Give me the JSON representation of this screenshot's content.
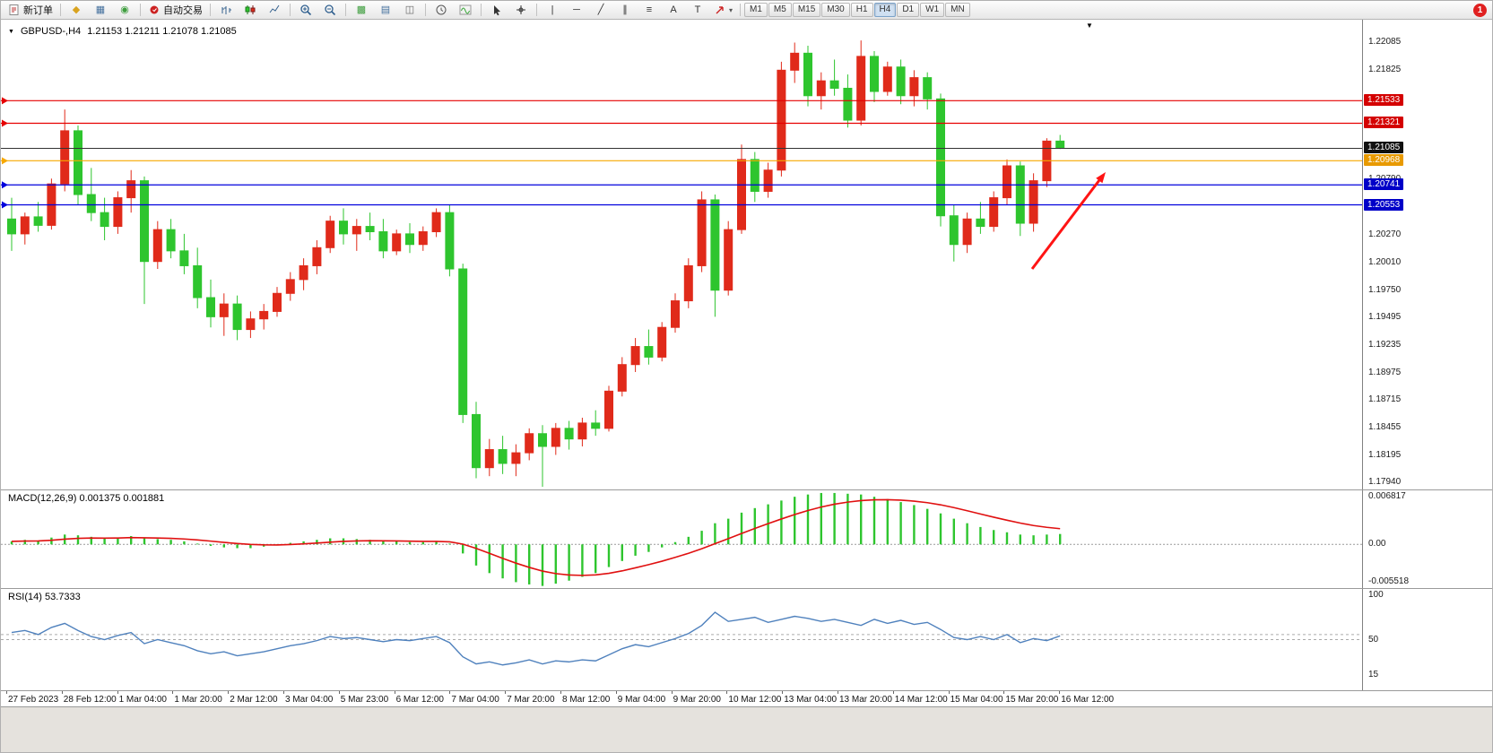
{
  "toolbar": {
    "groups": [
      [
        {
          "name": "new-order-button",
          "kind": "newdoc",
          "label": "新订单"
        }
      ],
      [
        {
          "name": "alerts-button",
          "glyph": "◆",
          "color": "#d9a31f"
        },
        {
          "name": "market-watch-button",
          "glyph": "▦",
          "color": "#44709d"
        },
        {
          "name": "navigator-button",
          "glyph": "◉",
          "color": "#3f9e3f"
        }
      ],
      [
        {
          "name": "autotrading-button",
          "kind": "auto",
          "label": "自动交易"
        }
      ],
      [
        {
          "name": "bar-chart-button",
          "kind": "bars",
          "color": "#35618e"
        },
        {
          "name": "candlestick-chart-button",
          "kind": "candle",
          "color": "#555555"
        },
        {
          "name": "line-chart-button",
          "kind": "linech",
          "color": "#35618e"
        }
      ],
      [
        {
          "name": "zoom-in-button",
          "kind": "zoomin"
        },
        {
          "name": "zoom-out-button",
          "kind": "zoomout"
        }
      ],
      [
        {
          "name": "tile-windows-button",
          "glyph": "▩",
          "color": "#3f9e3f"
        },
        {
          "name": "new-chart-button",
          "glyph": "▤",
          "color": "#44709d"
        },
        {
          "name": "cascade-windows-button",
          "glyph": "◫",
          "color": "#666666"
        }
      ],
      [
        {
          "name": "period-button",
          "kind": "clock"
        },
        {
          "name": "indicators-button",
          "kind": "wave"
        }
      ],
      [
        {
          "name": "cursor-button",
          "kind": "cursor"
        },
        {
          "name": "crosshair-button",
          "kind": "cross"
        }
      ],
      [
        {
          "name": "vertical-line-button",
          "glyph": "|",
          "color": "#333333"
        },
        {
          "name": "horizontal-line-button",
          "glyph": "─",
          "color": "#333333"
        },
        {
          "name": "trendline-button",
          "glyph": "╱",
          "color": "#333333"
        },
        {
          "name": "channel-button",
          "glyph": "∥",
          "color": "#333333"
        },
        {
          "name": "fibonacci-button",
          "glyph": "≡",
          "color": "#333333"
        },
        {
          "name": "text-button",
          "glyph": "A",
          "color": "#333333"
        },
        {
          "name": "label-button",
          "glyph": "T",
          "color": "#333333"
        },
        {
          "name": "shapes-button",
          "kind": "arrowshape",
          "caret": true
        }
      ]
    ],
    "timeframes": {
      "items": [
        "M1",
        "M5",
        "M15",
        "M30",
        "H1",
        "H4",
        "D1",
        "W1",
        "MN"
      ],
      "active": "H4"
    },
    "notification": {
      "count": "1"
    }
  },
  "chart": {
    "title_marker": "▼",
    "title_symbol": "GBPUSD-,H4",
    "title_ohlc": "1.21153 1.21211 1.21078 1.21085",
    "shift_marker": "▼",
    "scale": {
      "max": 1.22295,
      "min": 1.17875
    },
    "axis_labels": [
      {
        "text": "1.22085",
        "value": 1.22085
      },
      {
        "text": "1.21825",
        "value": 1.21825
      },
      {
        "text": "1.20790",
        "value": 1.2079
      },
      {
        "text": "1.20270",
        "value": 1.2027
      },
      {
        "text": "1.20010",
        "value": 1.2001
      },
      {
        "text": "1.19750",
        "value": 1.1975
      },
      {
        "text": "1.19495",
        "value": 1.19495
      },
      {
        "text": "1.19235",
        "value": 1.19235
      },
      {
        "text": "1.18975",
        "value": 1.18975
      },
      {
        "text": "1.18715",
        "value": 1.18715
      },
      {
        "text": "1.18455",
        "value": 1.18455
      },
      {
        "text": "1.18195",
        "value": 1.18195
      },
      {
        "text": "1.17940",
        "value": 1.1794
      }
    ],
    "levels": [
      {
        "label": "1.21533",
        "value": 1.21533,
        "color": "#e60000",
        "badge": "#d40000",
        "current": false
      },
      {
        "label": "1.21321",
        "value": 1.21321,
        "color": "#e60000",
        "badge": "#d40000",
        "current": false
      },
      {
        "label": "1.21085",
        "value": 1.21085,
        "color": "#333333",
        "badge": "#101010",
        "current": true
      },
      {
        "label": "1.20968",
        "value": 1.20968,
        "color": "#f7a800",
        "badge": "#e89a00",
        "current": false
      },
      {
        "label": "1.20741",
        "value": 1.20741,
        "color": "#0000dd",
        "badge": "#0000c8",
        "current": false
      },
      {
        "label": "1.20553",
        "value": 1.20553,
        "color": "#0000dd",
        "badge": "#0000c8",
        "current": false
      }
    ],
    "annotation": {
      "type": "arrow",
      "color": "#ff1414"
    }
  },
  "chart_data": {
    "type": "candlestick",
    "symbol": "GBPUSD-",
    "timeframe": "H4",
    "current": {
      "open": 1.21153,
      "high": 1.21211,
      "low": 1.21078,
      "close": 1.21085
    },
    "price_range": [
      1.17875,
      1.22295
    ],
    "up_color": "#e02a1a",
    "down_color": "#2ec52e",
    "candles": [
      [
        1.2042,
        1.2062,
        1.2012,
        1.2028
      ],
      [
        1.2028,
        1.2048,
        1.2018,
        1.2044
      ],
      [
        1.2044,
        1.2058,
        1.203,
        1.2036
      ],
      [
        1.2036,
        1.208,
        1.2032,
        1.2075
      ],
      [
        1.2075,
        1.2145,
        1.2068,
        1.2125
      ],
      [
        1.2125,
        1.213,
        1.2055,
        1.2065
      ],
      [
        1.2065,
        1.209,
        1.204,
        1.2048
      ],
      [
        1.2048,
        1.2062,
        1.2022,
        1.2035
      ],
      [
        1.2035,
        1.2068,
        1.2028,
        1.2062
      ],
      [
        1.2062,
        1.2088,
        1.2048,
        1.2078
      ],
      [
        1.2078,
        1.2082,
        1.1962,
        1.2002
      ],
      [
        1.2002,
        1.204,
        1.1995,
        1.2032
      ],
      [
        1.2032,
        1.2042,
        1.2005,
        1.2012
      ],
      [
        1.2012,
        1.2028,
        1.199,
        1.1998
      ],
      [
        1.1998,
        1.2015,
        1.1958,
        1.1968
      ],
      [
        1.1968,
        1.1985,
        1.194,
        1.195
      ],
      [
        1.195,
        1.1972,
        1.1932,
        1.1962
      ],
      [
        1.1962,
        1.197,
        1.1928,
        1.1938
      ],
      [
        1.1938,
        1.1955,
        1.193,
        1.1948
      ],
      [
        1.1948,
        1.1962,
        1.1938,
        1.1955
      ],
      [
        1.1955,
        1.1978,
        1.195,
        1.1972
      ],
      [
        1.1972,
        1.1992,
        1.1965,
        1.1985
      ],
      [
        1.1985,
        1.2005,
        1.1975,
        1.1998
      ],
      [
        1.1998,
        1.2022,
        1.199,
        1.2015
      ],
      [
        1.2015,
        1.2045,
        1.201,
        1.204
      ],
      [
        1.204,
        1.2052,
        1.2018,
        1.2028
      ],
      [
        1.2028,
        1.2042,
        1.2012,
        1.2035
      ],
      [
        1.2035,
        1.2048,
        1.2022,
        1.203
      ],
      [
        1.203,
        1.2042,
        1.2005,
        1.2012
      ],
      [
        1.2012,
        1.2032,
        1.2008,
        1.2028
      ],
      [
        1.2028,
        1.2038,
        1.201,
        1.2018
      ],
      [
        1.2018,
        1.2035,
        1.2012,
        1.203
      ],
      [
        1.203,
        1.2052,
        1.2025,
        1.2048
      ],
      [
        1.2048,
        1.2055,
        1.1988,
        1.1995
      ],
      [
        1.1995,
        1.2,
        1.185,
        1.1858
      ],
      [
        1.1858,
        1.187,
        1.1798,
        1.1808
      ],
      [
        1.1808,
        1.1835,
        1.18,
        1.1825
      ],
      [
        1.1825,
        1.1838,
        1.1802,
        1.1812
      ],
      [
        1.1812,
        1.183,
        1.18,
        1.1822
      ],
      [
        1.1822,
        1.1845,
        1.1815,
        1.184
      ],
      [
        1.184,
        1.1848,
        1.179,
        1.1828
      ],
      [
        1.1828,
        1.185,
        1.182,
        1.1845
      ],
      [
        1.1845,
        1.1852,
        1.1825,
        1.1835
      ],
      [
        1.1835,
        1.1855,
        1.1828,
        1.185
      ],
      [
        1.185,
        1.1862,
        1.1838,
        1.1845
      ],
      [
        1.1845,
        1.1885,
        1.1842,
        1.188
      ],
      [
        1.188,
        1.1912,
        1.1875,
        1.1905
      ],
      [
        1.1905,
        1.193,
        1.1898,
        1.1922
      ],
      [
        1.1922,
        1.1938,
        1.1905,
        1.1912
      ],
      [
        1.1912,
        1.1945,
        1.1908,
        1.194
      ],
      [
        1.194,
        1.1972,
        1.1935,
        1.1965
      ],
      [
        1.1965,
        1.2005,
        1.1958,
        1.1998
      ],
      [
        1.1998,
        1.2068,
        1.1992,
        1.206
      ],
      [
        1.206,
        1.2065,
        1.195,
        1.1975
      ],
      [
        1.1975,
        1.204,
        1.197,
        1.2032
      ],
      [
        1.2032,
        1.2112,
        1.2028,
        1.2098
      ],
      [
        1.2098,
        1.2105,
        1.2058,
        1.2068
      ],
      [
        1.2068,
        1.2095,
        1.2062,
        1.2088
      ],
      [
        1.2088,
        1.219,
        1.2082,
        1.2182
      ],
      [
        1.2182,
        1.2208,
        1.217,
        1.2198
      ],
      [
        1.2198,
        1.2205,
        1.2148,
        1.2158
      ],
      [
        1.2158,
        1.218,
        1.2145,
        1.2172
      ],
      [
        1.2172,
        1.2192,
        1.2158,
        1.2165
      ],
      [
        1.2165,
        1.2178,
        1.2128,
        1.2135
      ],
      [
        1.2135,
        1.221,
        1.213,
        1.2195
      ],
      [
        1.2195,
        1.22,
        1.2152,
        1.2162
      ],
      [
        1.2162,
        1.219,
        1.2158,
        1.2185
      ],
      [
        1.2185,
        1.2192,
        1.215,
        1.2158
      ],
      [
        1.2158,
        1.2182,
        1.2148,
        1.2175
      ],
      [
        1.2175,
        1.218,
        1.2145,
        1.2155
      ],
      [
        1.2155,
        1.216,
        1.2035,
        1.2045
      ],
      [
        1.2045,
        1.2055,
        1.2002,
        1.2018
      ],
      [
        1.2018,
        1.2048,
        1.201,
        1.2042
      ],
      [
        1.2042,
        1.2058,
        1.2028,
        1.2035
      ],
      [
        1.2035,
        1.2068,
        1.203,
        1.2062
      ],
      [
        1.2062,
        1.2098,
        1.2055,
        1.2092
      ],
      [
        1.2092,
        1.2096,
        1.2026,
        1.2038
      ],
      [
        1.2038,
        1.2085,
        1.203,
        1.2078
      ],
      [
        1.2078,
        1.2118,
        1.2072,
        1.21153
      ],
      [
        1.21153,
        1.21211,
        1.21078,
        1.21085
      ]
    ]
  },
  "macd": {
    "label": "MACD(12,26,9) 0.001375 0.001881",
    "axis": [
      {
        "text": "0.006817",
        "value": 0.006817
      },
      {
        "text": "0.00",
        "value": 0
      },
      {
        "text": "-0.005518",
        "value": -0.005518
      }
    ],
    "scale": {
      "max": 0.00715,
      "min": -0.00578
    },
    "hist_color": "#2ec52e",
    "signal_color": "#e01010",
    "histogram": [
      0.0004,
      0.0006,
      0.0005,
      0.0009,
      0.0013,
      0.0012,
      0.001,
      0.0008,
      0.0009,
      0.0011,
      0.0008,
      0.0007,
      0.0006,
      0.0004,
      0.0001,
      -0.0002,
      -0.0004,
      -0.0005,
      -0.0005,
      -0.0003,
      -0.0001,
      0.0002,
      0.0004,
      0.0006,
      0.0008,
      0.0008,
      0.0007,
      0.0006,
      0.0004,
      0.0004,
      0.0003,
      0.0003,
      0.0004,
      0.0001,
      -0.0012,
      -0.0028,
      -0.0038,
      -0.0045,
      -0.005,
      -0.0053,
      -0.0055,
      -0.0052,
      -0.0048,
      -0.0043,
      -0.0038,
      -0.003,
      -0.0022,
      -0.0015,
      -0.001,
      -0.0004,
      0.0003,
      0.001,
      0.0018,
      0.0028,
      0.0034,
      0.0042,
      0.0048,
      0.0053,
      0.0058,
      0.0063,
      0.0066,
      0.0068,
      0.0068,
      0.0067,
      0.0066,
      0.0063,
      0.006,
      0.0056,
      0.0052,
      0.0047,
      0.0041,
      0.0034,
      0.0028,
      0.0023,
      0.0019,
      0.0016,
      0.0013,
      0.0012,
      0.0013,
      0.001375
    ]
  },
  "rsi": {
    "label": "RSI(14) 53.7333",
    "axis": [
      {
        "text": "100",
        "value": 100
      },
      {
        "text": "50",
        "value": 50
      },
      {
        "text": "15",
        "value": 15
      }
    ],
    "levels": [
      55,
      50
    ],
    "scale": {
      "max": 100,
      "min": 0
    },
    "line_color": "#4f81bd",
    "values": [
      57,
      59,
      55,
      62,
      66,
      59,
      53,
      50,
      54,
      57,
      46,
      50,
      47,
      44,
      39,
      36,
      38,
      34,
      36,
      38,
      41,
      44,
      46,
      49,
      53,
      51,
      52,
      50,
      48,
      50,
      49,
      51,
      53,
      47,
      33,
      26,
      28,
      25,
      27,
      30,
      26,
      29,
      28,
      30,
      29,
      35,
      41,
      45,
      43,
      47,
      51,
      56,
      64,
      77,
      68,
      70,
      72,
      67,
      70,
      73,
      71,
      68,
      70,
      67,
      64,
      70,
      66,
      69,
      65,
      67,
      60,
      52,
      50,
      53,
      50,
      55,
      47,
      51,
      49,
      53.7
    ]
  },
  "time_axis": {
    "labels": [
      "27 Feb 2023",
      "28 Feb 12:00",
      "1 Mar 04:00",
      "1 Mar 20:00",
      "2 Mar 12:00",
      "3 Mar 04:00",
      "5 Mar 23:00",
      "6 Mar 12:00",
      "7 Mar 04:00",
      "7 Mar 20:00",
      "8 Mar 12:00",
      "9 Mar 04:00",
      "9 Mar 20:00",
      "10 Mar 12:00",
      "13 Mar 04:00",
      "13 Mar 20:00",
      "14 Mar 12:00",
      "15 Mar 04:00",
      "15 Mar 20:00",
      "16 Mar 12:00"
    ]
  }
}
